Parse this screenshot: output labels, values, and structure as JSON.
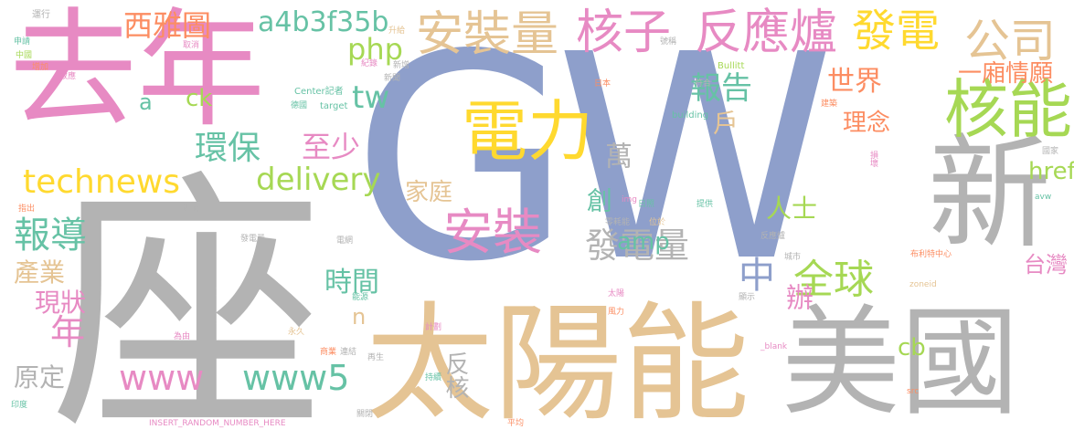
{
  "palette": {
    "blue": "#8e9fcb",
    "gray": "#b3b3b3",
    "tan": "#e5c494",
    "pink": "#e78ac3",
    "green": "#a6d854",
    "yellow": "#ffd92f",
    "orange": "#fc8d62",
    "teal": "#66c2a5"
  },
  "words": [
    {
      "text": "GW",
      "color": "blue"
    },
    {
      "text": "座",
      "color": "gray"
    },
    {
      "text": "去年",
      "color": "pink"
    },
    {
      "text": "太陽能",
      "color": "tan"
    },
    {
      "text": "美國",
      "color": "gray"
    },
    {
      "text": "新",
      "color": "gray"
    },
    {
      "text": "電力",
      "color": "yellow"
    },
    {
      "text": "核能",
      "color": "green"
    },
    {
      "text": "核子",
      "color": "pink"
    },
    {
      "text": "反應爐",
      "color": "pink"
    },
    {
      "text": "發電",
      "color": "yellow"
    },
    {
      "text": "安裝量",
      "color": "tan"
    },
    {
      "text": "公司",
      "color": "tan"
    },
    {
      "text": "西雅圖",
      "color": "orange"
    },
    {
      "text": "a4b3f35b",
      "color": "teal"
    },
    {
      "text": "安裝",
      "color": "pink"
    },
    {
      "text": "technews",
      "color": "yellow"
    },
    {
      "text": "delivery",
      "color": "green"
    },
    {
      "text": "環保",
      "color": "teal"
    },
    {
      "text": "報導",
      "color": "teal"
    },
    {
      "text": "www5",
      "color": "teal"
    },
    {
      "text": "www",
      "color": "pink"
    },
    {
      "text": "全球",
      "color": "green"
    },
    {
      "text": "發電量",
      "color": "gray"
    },
    {
      "text": "報告",
      "color": "teal"
    },
    {
      "text": "世界",
      "color": "orange"
    },
    {
      "text": "php",
      "color": "green"
    },
    {
      "text": "tw",
      "color": "teal"
    },
    {
      "text": "產業",
      "color": "tan"
    },
    {
      "text": "現狀",
      "color": "pink"
    },
    {
      "text": "年",
      "color": "pink"
    },
    {
      "text": "原定",
      "color": "gray"
    },
    {
      "text": "時間",
      "color": "teal"
    },
    {
      "text": "至少",
      "color": "pink"
    },
    {
      "text": "家庭",
      "color": "tan"
    },
    {
      "text": "中",
      "color": "blue"
    },
    {
      "text": "一廂情願",
      "color": "orange"
    },
    {
      "text": "理念",
      "color": "orange"
    },
    {
      "text": "amp",
      "color": "teal"
    },
    {
      "text": "人士",
      "color": "green"
    },
    {
      "text": "台灣",
      "color": "pink"
    },
    {
      "text": "href",
      "color": "green"
    },
    {
      "text": "萬",
      "color": "gray"
    },
    {
      "text": "辦",
      "color": "pink"
    },
    {
      "text": "創",
      "color": "teal"
    },
    {
      "text": "戶",
      "color": "tan"
    },
    {
      "text": "反核",
      "color": "gray"
    },
    {
      "text": "cb",
      "color": "green"
    },
    {
      "text": "ck",
      "color": "green"
    },
    {
      "text": "a",
      "color": "teal"
    },
    {
      "text": "n",
      "color": "tan"
    },
    {
      "text": "運行",
      "color": "gray"
    },
    {
      "text": "取消",
      "color": "pink"
    },
    {
      "text": "升給",
      "color": "tan"
    },
    {
      "text": "號稱",
      "color": "gray"
    },
    {
      "text": "申請",
      "color": "teal"
    },
    {
      "text": "中國",
      "color": "green"
    },
    {
      "text": "增加",
      "color": "orange"
    },
    {
      "text": "效應",
      "color": "pink"
    },
    {
      "text": "紀錄",
      "color": "pink"
    },
    {
      "text": "新增",
      "color": "gray"
    },
    {
      "text": "新聞",
      "color": "gray"
    },
    {
      "text": "Bullitt",
      "color": "green"
    },
    {
      "text": "符合",
      "color": "gray"
    },
    {
      "text": "日本",
      "color": "orange"
    },
    {
      "text": "Center記者",
      "color": "teal"
    },
    {
      "text": "德國",
      "color": "teal"
    },
    {
      "text": "target",
      "color": "teal"
    },
    {
      "text": "建築",
      "color": "orange"
    },
    {
      "text": "building",
      "color": "teal"
    },
    {
      "text": "國家",
      "color": "gray"
    },
    {
      "text": "閱讀",
      "color": "gray"
    },
    {
      "text": "指出",
      "color": "orange"
    },
    {
      "text": "img",
      "color": "pink"
    },
    {
      "text": "日照",
      "color": "teal"
    },
    {
      "text": "提供",
      "color": "teal"
    },
    {
      "text": "零耗能",
      "color": "gray"
    },
    {
      "text": "位於",
      "color": "tan"
    },
    {
      "text": "城市",
      "color": "gray"
    },
    {
      "text": "反應爐",
      "color": "gray"
    },
    {
      "text": "布利特中心",
      "color": "orange"
    },
    {
      "text": "zoneid",
      "color": "tan"
    },
    {
      "text": "電網",
      "color": "gray"
    },
    {
      "text": "為由",
      "color": "pink"
    },
    {
      "text": "永久",
      "color": "tan"
    },
    {
      "text": "商業",
      "color": "orange"
    },
    {
      "text": "連結",
      "color": "gray"
    },
    {
      "text": "再生",
      "color": "gray"
    },
    {
      "text": "持續",
      "color": "teal"
    },
    {
      "text": "印度",
      "color": "teal"
    },
    {
      "text": "INSERT_RANDOM_NUMBER_HERE",
      "color": "pink"
    },
    {
      "text": "關閉",
      "color": "gray"
    },
    {
      "text": "平均",
      "color": "orange"
    },
    {
      "text": "_blank",
      "color": "pink"
    },
    {
      "text": "src",
      "color": "orange"
    },
    {
      "text": "avw",
      "color": "teal"
    },
    {
      "text": "能源",
      "color": "teal"
    },
    {
      "text": "計劃",
      "color": "pink"
    },
    {
      "text": "太陽",
      "color": "pink"
    },
    {
      "text": "風力",
      "color": "orange"
    },
    {
      "text": "顯示",
      "color": "gray"
    },
    {
      "text": "損壞",
      "color": "pink"
    },
    {
      "text": "發電量",
      "color": "gray"
    }
  ]
}
